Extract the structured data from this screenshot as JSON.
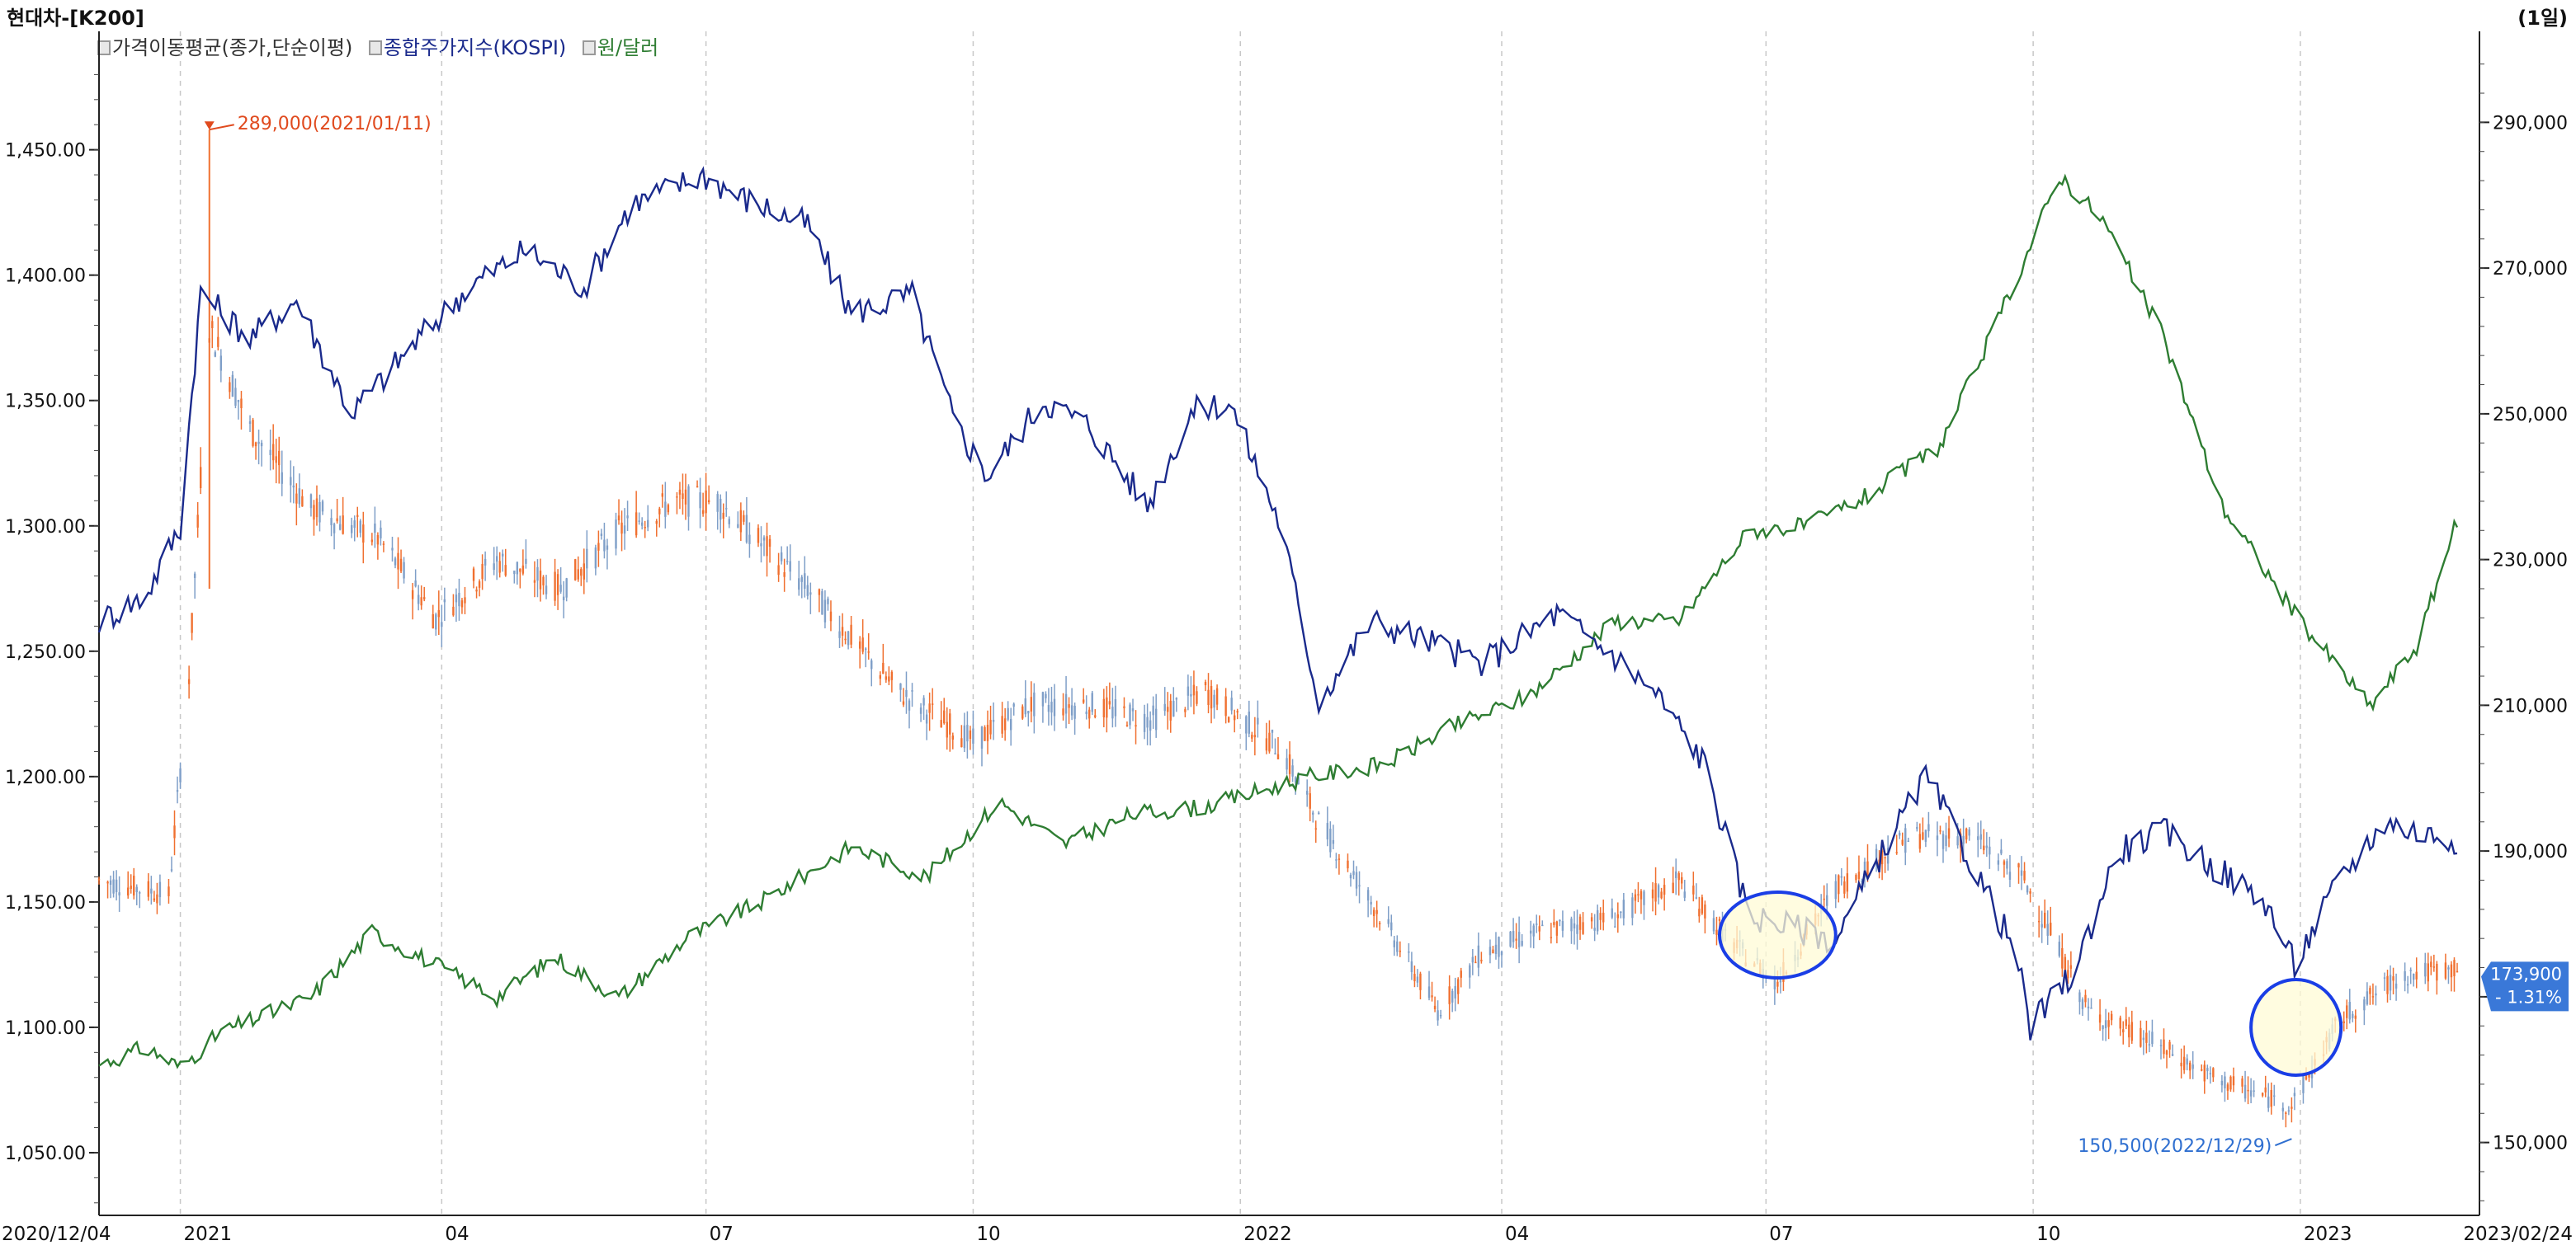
{
  "header": {
    "title": "현대차-[K200]",
    "period": "(1일)"
  },
  "legend": {
    "ma": "가격이동평균(종가,단순이평)",
    "kospi": "종합주가지수(KOSPI)",
    "fx": "원/달러"
  },
  "colors": {
    "kospi": "#1a2a8c",
    "fx": "#2e7d32",
    "candle_up": "#f07030",
    "candle_down": "#7f9fc8",
    "annotation_high": "#e04a1e",
    "annotation_low": "#2f6fd0",
    "highlight_fill": "#fffbd5",
    "highlight_stroke": "#1a3ee6",
    "badge_bg": "#3a78d8"
  },
  "chart_data": {
    "type": "line",
    "x_tick_labels": [
      "2020/12/04",
      "2021",
      "04",
      "07",
      "10",
      "2022",
      "04",
      "07",
      "10",
      "2023",
      "2023/02/24"
    ],
    "left_axis": {
      "label": "원/달러",
      "ticks": [
        "1,450.00",
        "1,400.00",
        "1,350.00",
        "1,300.00",
        "1,250.00",
        "1,200.00",
        "1,150.00",
        "1,100.00",
        "1,050.00"
      ],
      "range": [
        1025,
        1490
      ]
    },
    "right_axis": {
      "label": "현대차",
      "ticks": [
        "290,000",
        "270,000",
        "250,000",
        "230,000",
        "210,000",
        "190,000",
        "170,000",
        "150,000"
      ],
      "range": [
        140000,
        300000
      ]
    },
    "annotations": [
      {
        "label": "289,000(2021/01/11)",
        "date": "2021/01/11",
        "value": 289000
      },
      {
        "label": "150,500(2022/12/29)",
        "date": "2022/12/29",
        "value": 150500
      }
    ],
    "last_price": {
      "value": "173,900",
      "change": "- 1.31%"
    },
    "highlight_ellipses": [
      {
        "from": "2022/06/15",
        "to": "2022/07/25",
        "note": "yellow highlight"
      },
      {
        "from": "2022/12/15",
        "to": "2023/01/15",
        "note": "yellow highlight"
      }
    ],
    "series": [
      {
        "name": "원/달러",
        "axis": "left",
        "x": [
          "2020/12/04",
          "2020/12/20",
          "2021/01/01",
          "2021/01/15",
          "2021/02/15",
          "2021/03/08",
          "2021/03/25",
          "2021/04/20",
          "2021/05/10",
          "2021/06/01",
          "2021/06/25",
          "2021/07/20",
          "2021/08/20",
          "2021/09/15",
          "2021/10/10",
          "2021/11/01",
          "2021/11/25",
          "2021/12/20",
          "2022/01/25",
          "2022/02/20",
          "2022/03/15",
          "2022/04/10",
          "2022/05/10",
          "2022/06/01",
          "2022/06/25",
          "2022/07/15",
          "2022/08/05",
          "2022/08/30",
          "2022/09/15",
          "2022/09/28",
          "2022/10/10",
          "2022/10/25",
          "2022/11/15",
          "2022/12/05",
          "2022/12/30",
          "2023/01/25",
          "2023/02/10",
          "2023/02/24"
        ],
        "values": [
          1085,
          1092,
          1084,
          1098,
          1112,
          1138,
          1128,
          1112,
          1128,
          1112,
          1136,
          1150,
          1172,
          1160,
          1190,
          1173,
          1185,
          1188,
          1200,
          1205,
          1220,
          1232,
          1262,
          1262,
          1298,
          1300,
          1312,
          1332,
          1372,
          1406,
          1440,
          1422,
          1375,
          1308,
          1265,
          1228,
          1252,
          1302
        ]
      },
      {
        "name": "종합주가지수(KOSPI)",
        "axis": "left",
        "x": [
          "2020/12/04",
          "2020/12/20",
          "2021/01/01",
          "2021/01/08",
          "2021/01/25",
          "2021/02/10",
          "2021/03/01",
          "2021/03/22",
          "2021/04/10",
          "2021/04/30",
          "2021/05/20",
          "2021/06/05",
          "2021/06/30",
          "2021/07/15",
          "2021/08/05",
          "2021/08/20",
          "2021/09/10",
          "2021/09/25",
          "2021/10/06",
          "2021/10/25",
          "2021/11/10",
          "2021/11/30",
          "2021/12/15",
          "2021/12/28",
          "2022/01/15",
          "2022/01/28",
          "2022/02/15",
          "2022/03/05",
          "2022/03/25",
          "2022/04/20",
          "2022/05/10",
          "2022/05/25",
          "2022/06/10",
          "2022/06/25",
          "2022/07/10",
          "2022/07/25",
          "2022/08/10",
          "2022/08/25",
          "2022/09/10",
          "2022/09/25",
          "2022/09/30",
          "2022/10/15",
          "2022/10/30",
          "2022/11/15",
          "2022/12/01",
          "2022/12/20",
          "2022/12/30",
          "2023/01/15",
          "2023/01/30",
          "2023/02/10",
          "2023/02/24"
        ],
        "values": [
          1262,
          1272,
          1300,
          1393,
          1375,
          1390,
          1345,
          1372,
          1395,
          1410,
          1395,
          1428,
          1440,
          1430,
          1420,
          1385,
          1392,
          1340,
          1320,
          1350,
          1340,
          1308,
          1345,
          1350,
          1300,
          1230,
          1262,
          1255,
          1245,
          1265,
          1248,
          1232,
          1205,
          1145,
          1140,
          1135,
          1170,
          1200,
          1165,
          1130,
          1100,
          1122,
          1170,
          1178,
          1165,
          1150,
          1125,
          1160,
          1182,
          1178,
          1175
        ]
      }
    ],
    "candles": {
      "name": "현대차",
      "axis": "right",
      "style": "daily candlestick (approximate envelope)",
      "x": [
        "2020/12/04",
        "2020/12/28",
        "2021/01/04",
        "2021/01/11",
        "2021/01/25",
        "2021/02/15",
        "2021/03/10",
        "2021/03/30",
        "2021/04/20",
        "2021/05/12",
        "2021/06/01",
        "2021/06/20",
        "2021/07/05",
        "2021/08/05",
        "2021/09/05",
        "2021/10/01",
        "2021/10/20",
        "2021/11/10",
        "2021/12/01",
        "2021/12/20",
        "2022/01/15",
        "2022/01/28",
        "2022/02/20",
        "2022/03/10",
        "2022/03/25",
        "2022/04/15",
        "2022/05/10",
        "2022/06/01",
        "2022/06/20",
        "2022/07/05",
        "2022/07/25",
        "2022/08/20",
        "2022/09/10",
        "2022/09/28",
        "2022/10/20",
        "2022/11/10",
        "2022/12/01",
        "2022/12/29",
        "2023/01/15",
        "2023/02/05",
        "2023/02/24"
      ],
      "values": [
        186000,
        184000,
        214000,
        262000,
        248000,
        237000,
        233000,
        222000,
        230000,
        226000,
        234000,
        238000,
        238000,
        226000,
        212000,
        205000,
        210000,
        210000,
        208000,
        212000,
        204000,
        194000,
        180000,
        168000,
        176000,
        179000,
        181000,
        186000,
        177000,
        172000,
        185000,
        192000,
        192000,
        186000,
        168000,
        164000,
        159000,
        155000,
        167000,
        173000,
        173900
      ]
    }
  }
}
